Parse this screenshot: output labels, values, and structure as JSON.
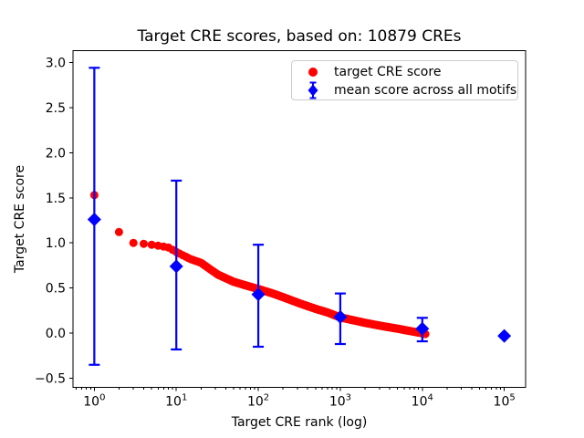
{
  "chart_data": {
    "type": "scatter",
    "title": "Target CRE scores, based on: 10879 CREs",
    "xlabel": "Target CRE rank (log)",
    "ylabel": "Target CRE score",
    "x_scale": "log",
    "grid": false,
    "xlim_log10": [
      -0.26,
      5.26
    ],
    "ylim": [
      -0.6,
      3.13
    ],
    "yticks": [
      3.0,
      2.5,
      2.0,
      1.5,
      1.0,
      0.5,
      0.0,
      -0.5
    ],
    "ytick_labels": [
      "3.0",
      "2.5",
      "2.0",
      "1.5",
      "1.0",
      "0.5",
      "0.0",
      "−0.5"
    ],
    "xticks": [
      {
        "value": 1,
        "base": "10",
        "exp": "0"
      },
      {
        "value": 10,
        "base": "10",
        "exp": "1"
      },
      {
        "value": 100,
        "base": "10",
        "exp": "2"
      },
      {
        "value": 1000,
        "base": "10",
        "exp": "3"
      },
      {
        "value": 10000,
        "base": "10",
        "exp": "4"
      },
      {
        "value": 100000,
        "base": "10",
        "exp": "5"
      }
    ],
    "colors": {
      "red_series": "#ff0000",
      "blue_series": "#0000ff",
      "spine": "#000000",
      "legend_border": "#cccccc"
    },
    "series": [
      {
        "name": "target CRE score",
        "style": "scatter",
        "marker": "circle",
        "color": "#ff0000",
        "n_points": 10879,
        "note": "scores for ranks 1..10879; anchors read off chart, intermediate ranks interpolated linearly in log10(rank)",
        "anchors": [
          [
            1,
            1.53
          ],
          [
            2,
            1.12
          ],
          [
            3,
            1.0
          ],
          [
            4,
            0.99
          ],
          [
            5,
            0.98
          ],
          [
            6,
            0.97
          ],
          [
            7,
            0.96
          ],
          [
            8,
            0.95
          ],
          [
            10,
            0.9
          ],
          [
            15,
            0.82
          ],
          [
            20,
            0.78
          ],
          [
            32,
            0.65
          ],
          [
            50,
            0.57
          ],
          [
            70,
            0.53
          ],
          [
            100,
            0.49
          ],
          [
            150,
            0.44
          ],
          [
            200,
            0.4
          ],
          [
            320,
            0.33
          ],
          [
            500,
            0.27
          ],
          [
            700,
            0.23
          ],
          [
            1000,
            0.175
          ],
          [
            1500,
            0.14
          ],
          [
            2000,
            0.115
          ],
          [
            3200,
            0.08
          ],
          [
            5000,
            0.05
          ],
          [
            7000,
            0.025
          ],
          [
            10000,
            0.0
          ],
          [
            10879,
            -0.01
          ]
        ]
      },
      {
        "name": "mean score across all motifs",
        "style": "errorbar",
        "marker": "diamond",
        "color": "#0000ff",
        "points": [
          {
            "x": 1,
            "mean": 1.26,
            "lo": -0.35,
            "hi": 2.94
          },
          {
            "x": 10,
            "mean": 0.74,
            "lo": -0.18,
            "hi": 1.69
          },
          {
            "x": 100,
            "mean": 0.43,
            "lo": -0.15,
            "hi": 0.98
          },
          {
            "x": 1000,
            "mean": 0.18,
            "lo": -0.12,
            "hi": 0.44
          },
          {
            "x": 10000,
            "mean": 0.05,
            "lo": -0.09,
            "hi": 0.17
          },
          {
            "x": 100000,
            "mean": -0.03,
            "lo": -0.03,
            "hi": -0.03
          }
        ]
      }
    ],
    "legend": {
      "position": "upper right",
      "items": [
        {
          "label": "target CRE score",
          "color": "#ff0000",
          "marker": "circle"
        },
        {
          "label": "mean score across all motifs",
          "color": "#0000ff",
          "marker": "diamond-errorbar"
        }
      ]
    }
  }
}
